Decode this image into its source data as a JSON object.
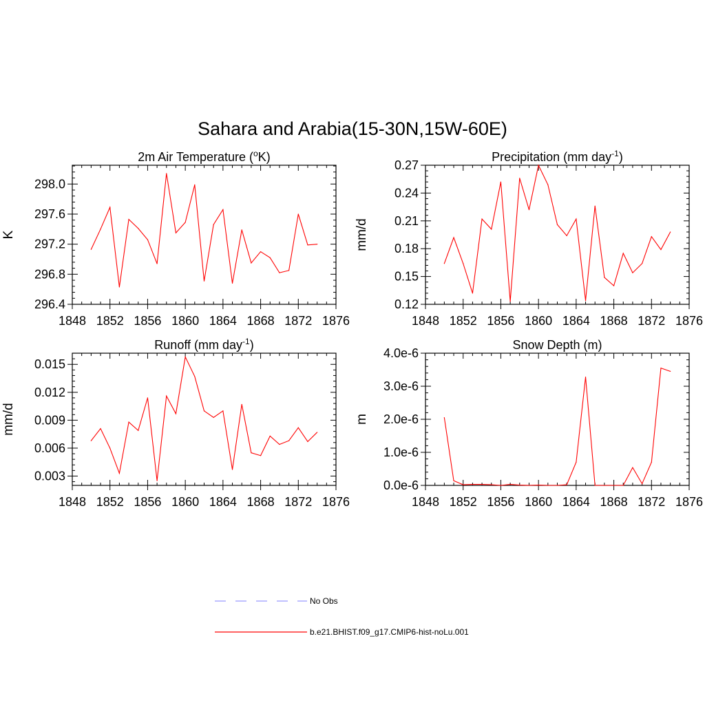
{
  "figure": {
    "title": "Sahara and Arabia(15-30N,15W-60E)"
  },
  "colors": {
    "series": "#ff0000",
    "obs": "#9999ff",
    "frame": "#000000"
  },
  "legend": {
    "entries": [
      {
        "label": "No Obs",
        "style": "dashed",
        "color": "#9999ff"
      },
      {
        "label": "b.e21.BHIST.f09_g17.CMIP6-hist-noLu.001",
        "style": "solid",
        "color": "#ff0000"
      }
    ]
  },
  "chart_data": [
    {
      "type": "line",
      "title": "2m Air Temperature (",
      "title_sup": "o",
      "title_after": "K)",
      "ylabel": "K",
      "xlabel": "",
      "xlim": [
        1848,
        1876
      ],
      "ylim": [
        296.4,
        298.25
      ],
      "xticks": [
        "1848",
        "1852",
        "1856",
        "1860",
        "1864",
        "1868",
        "1872",
        "1876"
      ],
      "yticks": [
        "296.4",
        "296.8",
        "297.2",
        "297.6",
        "298.0"
      ],
      "ytick_values": [
        296.4,
        296.8,
        297.2,
        297.6,
        298.0
      ],
      "series": [
        {
          "name": "b.e21.BHIST.f09_g17.CMIP6-hist-noLu.001",
          "x": [
            1850,
            1851,
            1852,
            1853,
            1854,
            1855,
            1856,
            1857,
            1858,
            1859,
            1860,
            1861,
            1862,
            1863,
            1864,
            1865,
            1866,
            1867,
            1868,
            1869,
            1870,
            1871,
            1872,
            1873,
            1874
          ],
          "y": [
            297.13,
            297.4,
            297.69,
            296.63,
            297.53,
            297.41,
            297.26,
            296.94,
            298.14,
            297.35,
            297.49,
            297.99,
            296.71,
            297.46,
            297.66,
            296.68,
            297.39,
            296.95,
            297.1,
            297.02,
            296.82,
            296.85,
            297.6,
            297.19,
            297.2
          ]
        }
      ]
    },
    {
      "type": "line",
      "title": "Precipitation (mm day",
      "title_sup": "-1",
      "title_after": ")",
      "ylabel": "mm/d",
      "xlabel": "",
      "xlim": [
        1848,
        1876
      ],
      "ylim": [
        0.12,
        0.27
      ],
      "xticks": [
        "1848",
        "1852",
        "1856",
        "1860",
        "1864",
        "1868",
        "1872",
        "1876"
      ],
      "yticks": [
        "0.12",
        "0.15",
        "0.18",
        "0.21",
        "0.24",
        "0.27"
      ],
      "ytick_values": [
        0.12,
        0.15,
        0.18,
        0.21,
        0.24,
        0.27
      ],
      "series": [
        {
          "name": "b.e21.BHIST.f09_g17.CMIP6-hist-noLu.001",
          "x": [
            1850,
            1851,
            1852,
            1853,
            1854,
            1855,
            1856,
            1857,
            1858,
            1859,
            1860,
            1861,
            1862,
            1863,
            1864,
            1865,
            1866,
            1867,
            1868,
            1869,
            1870,
            1871,
            1872,
            1873,
            1874
          ],
          "y": [
            0.164,
            0.192,
            0.164,
            0.132,
            0.212,
            0.201,
            0.252,
            0.123,
            0.256,
            0.222,
            0.27,
            0.249,
            0.206,
            0.194,
            0.212,
            0.124,
            0.226,
            0.149,
            0.14,
            0.175,
            0.154,
            0.164,
            0.193,
            0.179,
            0.198
          ]
        }
      ]
    },
    {
      "type": "line",
      "title": "Runoff (mm day",
      "title_sup": "-1",
      "title_after": ")",
      "ylabel": "mm/d",
      "xlabel": "",
      "xlim": [
        1848,
        1876
      ],
      "ylim": [
        0.002,
        0.0162
      ],
      "xticks": [
        "1848",
        "1852",
        "1856",
        "1860",
        "1864",
        "1868",
        "1872",
        "1876"
      ],
      "yticks": [
        "0.003",
        "0.006",
        "0.009",
        "0.012",
        "0.015"
      ],
      "ytick_values": [
        0.003,
        0.006,
        0.009,
        0.012,
        0.015
      ],
      "series": [
        {
          "name": "b.e21.BHIST.f09_g17.CMIP6-hist-noLu.001",
          "x": [
            1850,
            1851,
            1852,
            1853,
            1854,
            1855,
            1856,
            1857,
            1858,
            1859,
            1860,
            1861,
            1862,
            1863,
            1864,
            1865,
            1866,
            1867,
            1868,
            1869,
            1870,
            1871,
            1872,
            1873,
            1874
          ],
          "y": [
            0.0068,
            0.0081,
            0.006,
            0.0033,
            0.0088,
            0.0079,
            0.0114,
            0.0025,
            0.0116,
            0.0097,
            0.0158,
            0.0137,
            0.01,
            0.0093,
            0.01,
            0.0037,
            0.0107,
            0.0055,
            0.0052,
            0.0073,
            0.0064,
            0.0068,
            0.0082,
            0.0067,
            0.0077
          ]
        }
      ]
    },
    {
      "type": "line",
      "title": "Snow Depth (m)",
      "title_sup": "",
      "title_after": "",
      "ylabel": "m",
      "xlabel": "",
      "xlim": [
        1848,
        1876
      ],
      "ylim": [
        0,
        4e-06
      ],
      "xticks": [
        "1848",
        "1852",
        "1856",
        "1860",
        "1864",
        "1868",
        "1872",
        "1876"
      ],
      "yticks": [
        "0.0e-6",
        "1.0e-6",
        "2.0e-6",
        "3.0e-6",
        "4.0e-6"
      ],
      "ytick_values": [
        0,
        1e-06,
        2e-06,
        3e-06,
        4e-06
      ],
      "series": [
        {
          "name": "b.e21.BHIST.f09_g17.CMIP6-hist-noLu.001",
          "x": [
            1850,
            1851,
            1852,
            1853,
            1854,
            1855,
            1856,
            1857,
            1858,
            1859,
            1860,
            1861,
            1862,
            1863,
            1864,
            1865,
            1866,
            1867,
            1868,
            1869,
            1870,
            1871,
            1872,
            1873,
            1874
          ],
          "y": [
            2.05e-06,
            1.4e-07,
            2e-08,
            3e-08,
            3e-08,
            2e-08,
            0,
            3e-08,
            1e-08,
            0,
            1e-08,
            0,
            0,
            2e-08,
            7e-07,
            3.28e-06,
            0,
            0,
            0,
            0,
            5.4e-07,
            5e-08,
            7e-07,
            3.55e-06,
            3.45e-06
          ]
        }
      ]
    }
  ]
}
